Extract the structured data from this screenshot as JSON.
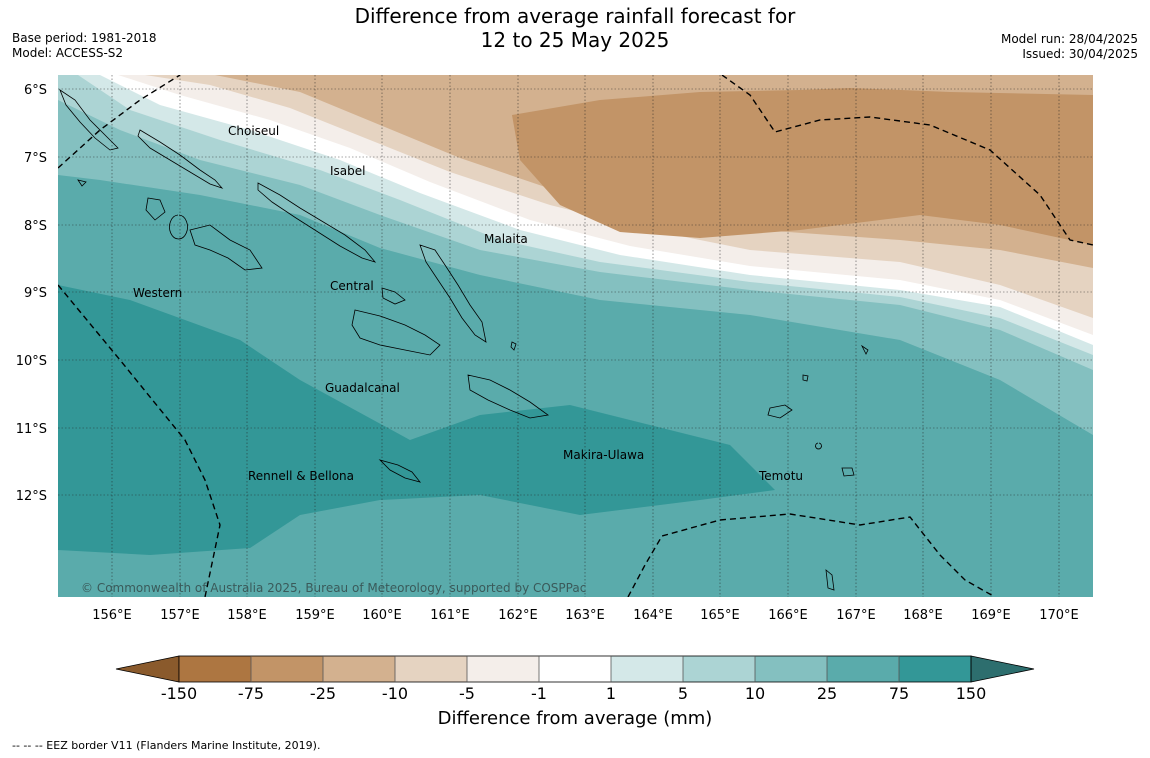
{
  "title": {
    "line1": "Difference from average rainfall forecast for",
    "line2": "12 to 25 May 2025"
  },
  "meta_left": {
    "base_period": "Base period: 1981-2018",
    "model": "Model: ACCESS-S2"
  },
  "meta_right": {
    "model_run": "Model run: 28/04/2025",
    "issued": "Issued: 30/04/2025"
  },
  "map": {
    "lat_ticks": [
      "6°S",
      "7°S",
      "8°S",
      "9°S",
      "10°S",
      "11°S",
      "12°S"
    ],
    "lon_ticks": [
      "156°E",
      "157°E",
      "158°E",
      "159°E",
      "160°E",
      "161°E",
      "162°E",
      "163°E",
      "164°E",
      "165°E",
      "166°E",
      "167°E",
      "168°E",
      "169°E",
      "170°E"
    ],
    "region_labels": [
      "Choiseul",
      "Isabel",
      "Malaita",
      "Western",
      "Central",
      "Guadalcanal",
      "Makira-Ulawa",
      "Rennell & Bellona",
      "Temotu"
    ],
    "copyright": "© Commonwealth of Australia 2025, Bureau of Meteorology, supported by COSPPac"
  },
  "colorbar": {
    "title": "Difference from average (mm)",
    "ticks": [
      "-150",
      "-75",
      "-25",
      "-10",
      "-5",
      "-1",
      "1",
      "5",
      "10",
      "25",
      "75",
      "150"
    ],
    "colors": {
      "below_-150": "#8a5a2c",
      "-150_-75": "#ad7641",
      "-75_-25": "#c29467",
      "-25_-10": "#d3b18f",
      "-10_-5": "#e5d3c1",
      "-5_-1": "#f4eeea",
      "-1_1": "#ffffff",
      "1_5": "#d4e8e8",
      "5_10": "#acd4d4",
      "10_25": "#84c0c0",
      "25_75": "#5aabab",
      "75_150": "#339797",
      "above_150": "#2d6e6e"
    }
  },
  "footnote": "--  --  -- EEZ border V11 (Flanders Marine Institute, 2019)."
}
